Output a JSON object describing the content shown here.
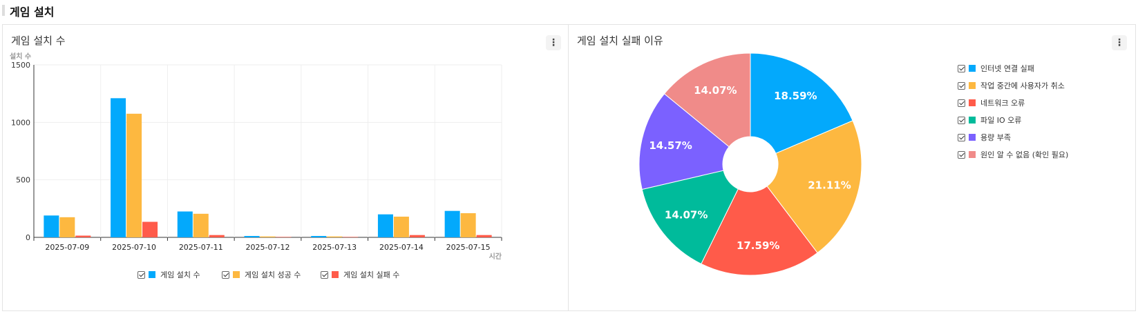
{
  "header": {
    "title": "게임 설치"
  },
  "left_panel": {
    "title": "게임 설치 수",
    "menu_label": "⋮"
  },
  "right_panel": {
    "title": "게임 설치 실패 이유",
    "menu_label": "⋮"
  },
  "chart_data": [
    {
      "type": "bar",
      "ylabel": "설치 수",
      "xlabel": "시간",
      "ylim": [
        0,
        1500
      ],
      "yticks": [
        "0",
        "500",
        "1000",
        "1500"
      ],
      "grid": true,
      "legend_position": "bottom",
      "categories": [
        "2025-07-09",
        "2025-07-10",
        "2025-07-11",
        "2025-07-12",
        "2025-07-13",
        "2025-07-14",
        "2025-07-15"
      ],
      "series": [
        {
          "name": "게임 설치 수",
          "color": "#03a9fc",
          "values": [
            190,
            1210,
            225,
            12,
            12,
            200,
            230
          ]
        },
        {
          "name": "게임 설치 성공 수",
          "color": "#fdb840",
          "values": [
            175,
            1075,
            205,
            8,
            8,
            180,
            210
          ]
        },
        {
          "name": "게임 설치 실패 수",
          "color": "#ff5b4a",
          "values": [
            15,
            135,
            20,
            4,
            4,
            20,
            20
          ]
        }
      ]
    },
    {
      "type": "pie",
      "donut": true,
      "legend_position": "right",
      "slices": [
        {
          "name": "인터넷 연결 실패",
          "value": 18.59,
          "label": "18.59%",
          "color": "#03a9fc"
        },
        {
          "name": "작업 중간에 사용자가 취소",
          "value": 21.11,
          "label": "21.11%",
          "color": "#fdb840"
        },
        {
          "name": "네트워크 오류",
          "value": 17.59,
          "label": "17.59%",
          "color": "#ff5b4a"
        },
        {
          "name": "파일 IO 오류",
          "value": 14.07,
          "label": "14.07%",
          "color": "#00bb9b"
        },
        {
          "name": "용량 부족",
          "value": 14.57,
          "label": "14.57%",
          "color": "#7b61ff"
        },
        {
          "name": "원인 알 수 없음 (확인 필요)",
          "value": 14.07,
          "label": "14.07%",
          "color": "#f08b89"
        }
      ]
    }
  ]
}
